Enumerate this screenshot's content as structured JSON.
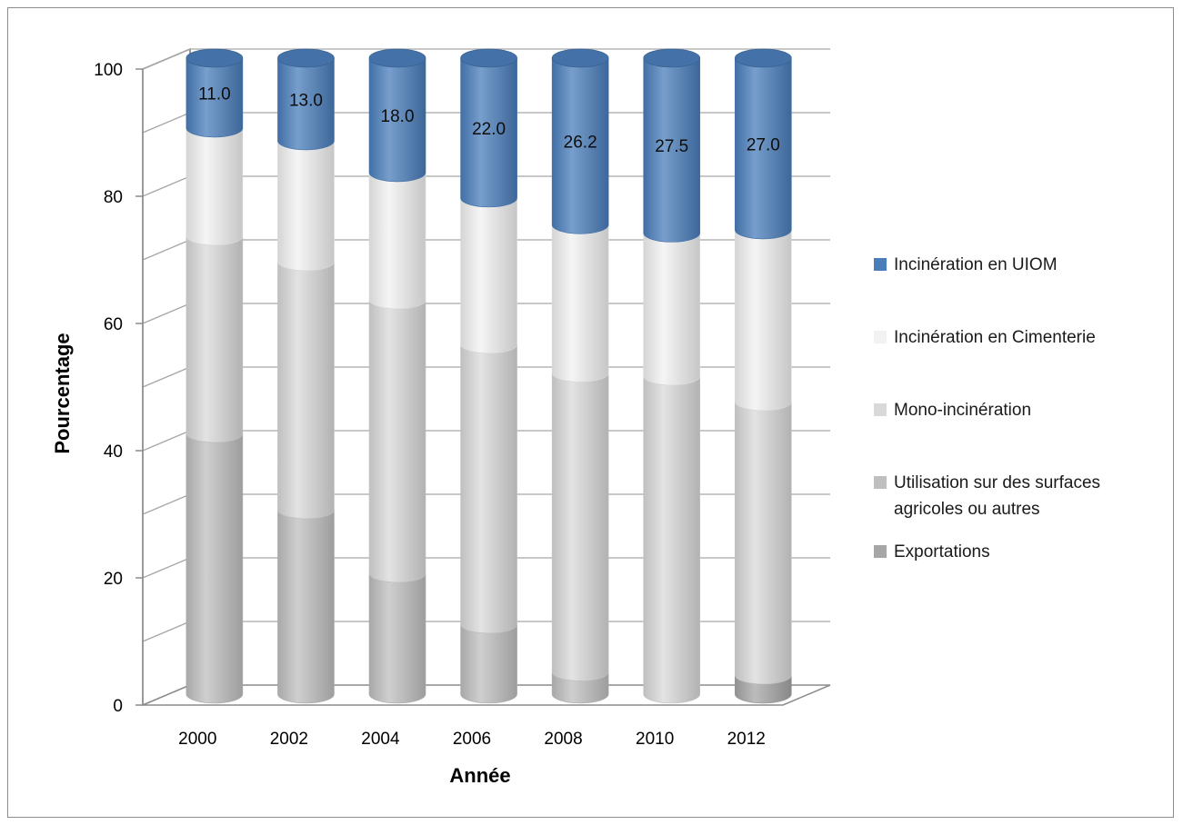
{
  "chart_data": {
    "type": "bar",
    "stacked": true,
    "style": "3d-cylinder",
    "title": "",
    "xlabel": "Année",
    "ylabel": "Pourcentage",
    "ylim": [
      0,
      100
    ],
    "yticks": [
      0,
      20,
      40,
      60,
      80,
      100
    ],
    "grid": true,
    "legend_position": "right",
    "categories": [
      "2000",
      "2002",
      "2004",
      "2006",
      "2008",
      "2010",
      "2012"
    ],
    "series": [
      {
        "name": "Exportations",
        "color": "#a6a6a6",
        "values": [
          0,
          0,
          0,
          0,
          0,
          0,
          3.0
        ]
      },
      {
        "name": "Utilisation sur des surfaces agricoles ou autres",
        "color": "#bfbfbf",
        "values": [
          41.0,
          29.0,
          19.0,
          11.0,
          3.5,
          0,
          0
        ]
      },
      {
        "name": "Mono-incinération",
        "color": "#d9d9d9",
        "values": [
          31.0,
          39.0,
          43.0,
          44.0,
          47.0,
          50.0,
          43.0
        ]
      },
      {
        "name": "Incinération en Cimenterie",
        "color": "#f2f2f2",
        "values": [
          17.0,
          19.0,
          20.0,
          23.0,
          23.3,
          22.5,
          27.0
        ]
      },
      {
        "name": "Incinération en UIOM",
        "color": "#4a7ebb",
        "values": [
          11.0,
          13.0,
          18.0,
          22.0,
          26.2,
          27.5,
          27.0
        ]
      }
    ],
    "data_labels_series": "Incinération en UIOM",
    "data_labels": [
      "11.0",
      "13.0",
      "18.0",
      "22.0",
      "26.2",
      "27.5",
      "27.0"
    ]
  }
}
